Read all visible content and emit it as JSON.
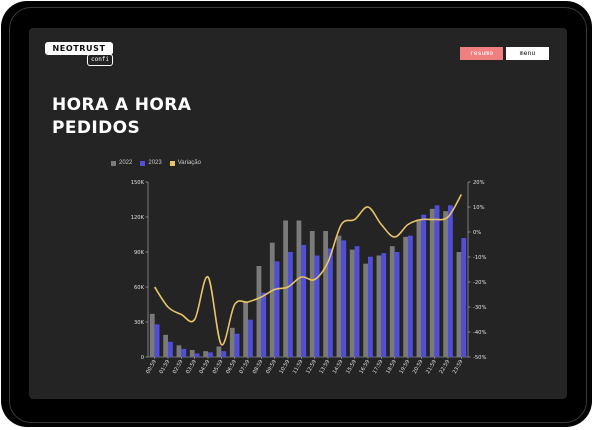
{
  "header": {
    "logo_text": "NEOTRUST",
    "logo_sub": "confi",
    "btn_resumo": "resumo",
    "btn_menu": "menu"
  },
  "page": {
    "title_line1": "HORA A HORA",
    "title_line2": "PEDIDOS"
  },
  "colors": {
    "series_2022": "#7a7a7a",
    "series_2023": "#4f4fd9",
    "variacao": "#e8c36a",
    "accent_resumo": "#f08080"
  },
  "chart_data": {
    "type": "bar",
    "categories": [
      "00:59",
      "01:59",
      "02:59",
      "03:59",
      "04:59",
      "05:59",
      "06:59",
      "07:59",
      "08:59",
      "09:59",
      "10:59",
      "11:59",
      "12:59",
      "13:59",
      "14:59",
      "15:59",
      "16:59",
      "17:59",
      "18:59",
      "19:59",
      "20:59",
      "21:59",
      "22:59",
      "23:59"
    ],
    "series": [
      {
        "name": "2022",
        "values": [
          37000,
          19000,
          10000,
          6000,
          5000,
          9000,
          25000,
          47000,
          78000,
          98000,
          117000,
          117000,
          108000,
          108000,
          104000,
          92000,
          80000,
          87000,
          95000,
          103000,
          118000,
          127000,
          125000,
          90000
        ]
      },
      {
        "name": "2023",
        "values": [
          28000,
          13000,
          7000,
          3000,
          4000,
          5000,
          20000,
          32000,
          55000,
          82000,
          90000,
          96000,
          87000,
          93000,
          100000,
          95000,
          86000,
          89000,
          90000,
          104000,
          122000,
          130000,
          130000,
          102000
        ]
      },
      {
        "name": "Variação",
        "axis": "right",
        "type": "line",
        "values": [
          -22,
          -30,
          -33,
          -35,
          -18,
          -45,
          -29,
          -28,
          -26,
          -23,
          -22,
          -18,
          -19,
          -12,
          3,
          5,
          10,
          3,
          -2,
          3,
          5,
          5,
          6,
          15
        ]
      }
    ],
    "ylim": [
      0,
      150000
    ],
    "yticks": [
      "0",
      "30K",
      "60K",
      "90K",
      "120K",
      "150K"
    ],
    "y2lim": [
      -50,
      20
    ],
    "y2ticks": [
      "-50%",
      "-40%",
      "-30%",
      "-20%",
      "-10%",
      "0%",
      "10%",
      "20%"
    ],
    "legend_position": "top-left",
    "grid": false
  }
}
